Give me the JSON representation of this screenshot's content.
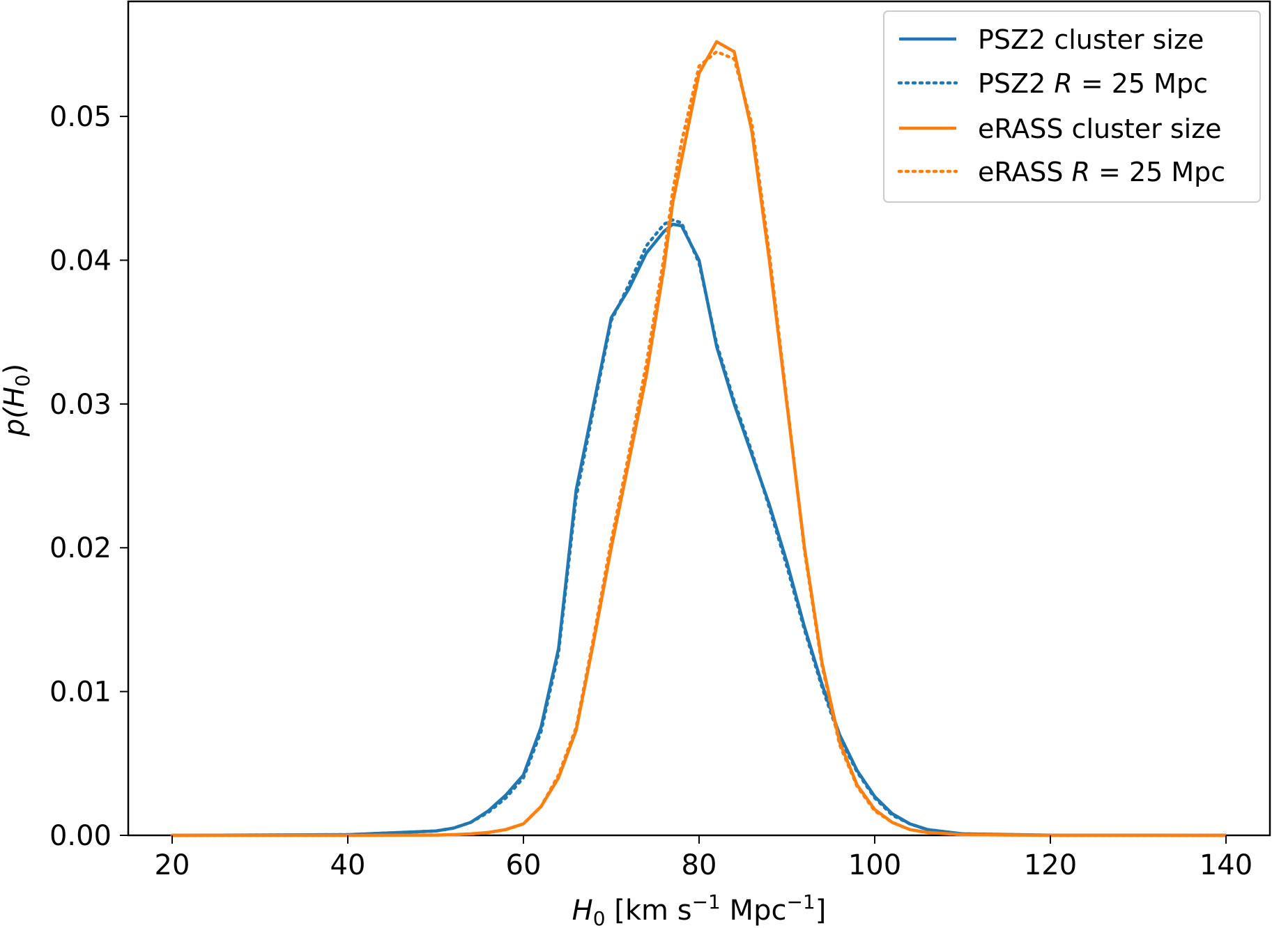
{
  "chart_data": {
    "type": "line",
    "title": "",
    "xlabel": {
      "main": "H",
      "sub": "0",
      "rest": " [km s",
      "sup1": "−1",
      "mid": " Mpc",
      "sup2": "−1",
      "end": "]"
    },
    "ylabel": {
      "pre": "p(",
      "main": "H",
      "sub": "0",
      "post": ")"
    },
    "xlim": [
      15,
      145
    ],
    "ylim": [
      0,
      0.058
    ],
    "xticks": [
      20,
      40,
      60,
      80,
      100,
      120,
      140
    ],
    "xtick_labels": [
      "20",
      "40",
      "60",
      "80",
      "100",
      "120",
      "140"
    ],
    "yticks": [
      0.0,
      0.01,
      0.02,
      0.03,
      0.04,
      0.05
    ],
    "ytick_labels": [
      "0.00",
      "0.01",
      "0.02",
      "0.03",
      "0.04",
      "0.05"
    ],
    "grid": false,
    "legend_position": "top-right",
    "x": [
      20,
      40,
      50,
      52,
      54,
      56,
      58,
      60,
      62,
      64,
      66,
      68,
      70,
      72,
      74,
      76,
      77,
      78,
      80,
      82,
      84,
      86,
      88,
      90,
      92,
      94,
      96,
      98,
      100,
      102,
      104,
      106,
      110,
      120,
      140
    ],
    "series": [
      {
        "name": "PSZ2 cluster size",
        "legend_text": "PSZ2 cluster size",
        "color": "#1f77b4",
        "style": "solid",
        "values": [
          0.0,
          5e-05,
          0.0003,
          0.0005,
          0.0009,
          0.0017,
          0.0028,
          0.0042,
          0.0075,
          0.013,
          0.024,
          0.03,
          0.036,
          0.038,
          0.0405,
          0.042,
          0.0425,
          0.0424,
          0.04,
          0.034,
          0.03,
          0.0265,
          0.023,
          0.019,
          0.0145,
          0.0105,
          0.007,
          0.0045,
          0.0027,
          0.0015,
          0.0008,
          0.0004,
          0.0001,
          1e-05,
          0.0
        ]
      },
      {
        "name": "PSZ2 R = 25 Mpc",
        "legend_text": {
          "pre": "PSZ2 ",
          "italic": "R",
          "post": " = 25 Mpc"
        },
        "color": "#1f77b4",
        "style": "dotted",
        "values": [
          0.0,
          5e-05,
          0.0003,
          0.0005,
          0.0009,
          0.0016,
          0.0026,
          0.004,
          0.0072,
          0.0127,
          0.0235,
          0.0297,
          0.0358,
          0.0383,
          0.041,
          0.0425,
          0.0428,
          0.0426,
          0.0398,
          0.0342,
          0.0302,
          0.0267,
          0.0228,
          0.0187,
          0.0143,
          0.0103,
          0.0068,
          0.0044,
          0.0026,
          0.0014,
          0.0008,
          0.0004,
          0.0001,
          1e-05,
          0.0
        ]
      },
      {
        "name": "eRASS cluster size",
        "legend_text": "eRASS cluster size",
        "color": "#ff7f0e",
        "style": "solid",
        "values": [
          0.0,
          0.0,
          2e-05,
          5e-05,
          0.0001,
          0.0002,
          0.0004,
          0.0008,
          0.002,
          0.004,
          0.0073,
          0.0135,
          0.02,
          0.026,
          0.032,
          0.0395,
          0.044,
          0.047,
          0.053,
          0.0552,
          0.0545,
          0.049,
          0.04,
          0.03,
          0.02,
          0.012,
          0.0065,
          0.0035,
          0.0018,
          0.0009,
          0.0004,
          0.0002,
          5e-05,
          0.0,
          0.0
        ]
      },
      {
        "name": "eRASS R = 25 Mpc",
        "legend_text": {
          "pre": "eRASS ",
          "italic": "R",
          "post": " = 25 Mpc"
        },
        "color": "#ff7f0e",
        "style": "dotted",
        "values": [
          0.0,
          0.0,
          2e-05,
          5e-05,
          0.0001,
          0.0002,
          0.0004,
          0.0008,
          0.002,
          0.0042,
          0.0075,
          0.0138,
          0.0205,
          0.0265,
          0.0328,
          0.0402,
          0.0448,
          0.0482,
          0.0535,
          0.0545,
          0.054,
          0.0495,
          0.0405,
          0.0302,
          0.0198,
          0.0118,
          0.0063,
          0.0034,
          0.0017,
          0.0009,
          0.0004,
          0.0002,
          5e-05,
          0.0,
          0.0
        ]
      }
    ]
  }
}
